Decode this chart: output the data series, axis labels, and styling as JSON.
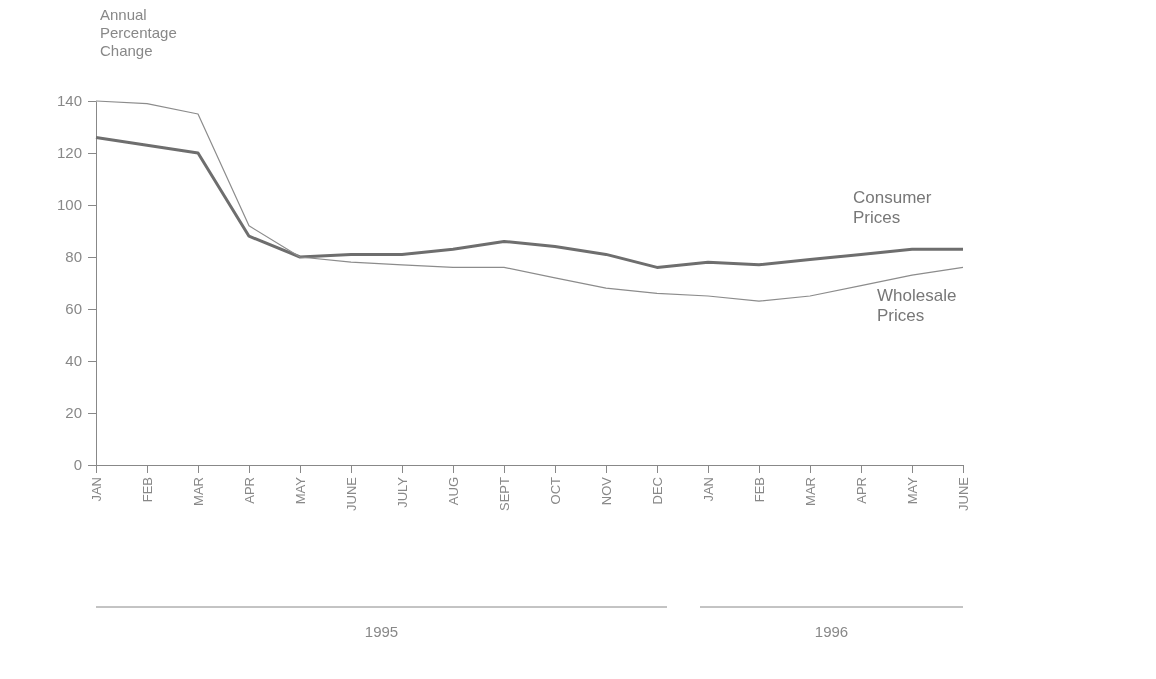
{
  "chart_data": {
    "type": "line",
    "ylabel": "Annual Percentage Change",
    "categories": [
      "JAN",
      "FEB",
      "MAR",
      "APR",
      "MAY",
      "JUNE",
      "JULY",
      "AUG",
      "SEPT",
      "OCT",
      "NOV",
      "DEC",
      "JAN",
      "FEB",
      "MAR",
      "APR",
      "MAY",
      "JUNE"
    ],
    "series": [
      {
        "name": "Consumer Prices",
        "color": "#6e6e6e",
        "values": [
          126,
          123,
          120,
          88,
          80,
          81,
          81,
          83,
          86,
          84,
          81,
          76,
          78,
          77,
          79,
          81,
          83,
          83
        ]
      },
      {
        "name": "Wholesale Prices",
        "color": "#8c8c8c",
        "values": [
          140,
          139,
          135,
          92,
          80,
          78,
          77,
          76,
          76,
          72,
          68,
          66,
          65,
          63,
          65,
          69,
          73,
          76
        ]
      }
    ],
    "ylim": [
      0,
      140
    ],
    "yticks": [
      0,
      20,
      40,
      60,
      80,
      100,
      120,
      140
    ],
    "grid": false,
    "annotations": [
      "1995",
      "1996"
    ]
  }
}
